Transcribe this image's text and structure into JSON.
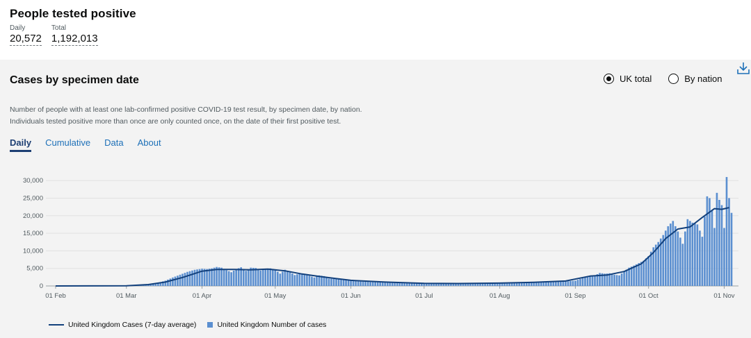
{
  "headline": {
    "title": "People tested positive",
    "daily_label": "Daily",
    "daily_value": "20,572",
    "total_label": "Total",
    "total_value": "1,192,013"
  },
  "card": {
    "title": "Cases by specimen date",
    "radio_uk": "UK total",
    "radio_nation": "By nation",
    "selected": "UK total",
    "description_line1": "Number of people with at least one lab-confirmed positive COVID-19 test result, by specimen date, by nation.",
    "description_line2": "Individuals tested positive more than once are only counted once, on the date of their first positive test.",
    "tabs": [
      "Daily",
      "Cumulative",
      "Data",
      "About"
    ],
    "active_tab": "Daily"
  },
  "colors": {
    "bar": "#5b8fd0",
    "line": "#12407c",
    "tab_active": "#1d3f73",
    "link": "#1d70b8"
  },
  "icons": {
    "download": "download-icon"
  },
  "chart_data": {
    "type": "bar",
    "x_start_date": "2020-02-01",
    "ylim": [
      0,
      32000
    ],
    "y_ticks": [
      0,
      5000,
      10000,
      15000,
      20000,
      25000,
      30000
    ],
    "y_tick_labels": [
      "0",
      "5,000",
      "10,000",
      "15,000",
      "20,000",
      "25,000",
      "30,000"
    ],
    "x_ticks": [
      {
        "date": "2020-02-01",
        "label": "01 Feb"
      },
      {
        "date": "2020-03-01",
        "label": "01 Mar"
      },
      {
        "date": "2020-04-01",
        "label": "01 Apr"
      },
      {
        "date": "2020-05-01",
        "label": "01 May"
      },
      {
        "date": "2020-06-01",
        "label": "01 Jun"
      },
      {
        "date": "2020-07-01",
        "label": "01 Jul"
      },
      {
        "date": "2020-08-01",
        "label": "01 Aug"
      },
      {
        "date": "2020-09-01",
        "label": "01 Sep"
      },
      {
        "date": "2020-10-01",
        "label": "01 Oct"
      },
      {
        "date": "2020-11-01",
        "label": "01 Nov"
      }
    ],
    "series": [
      {
        "name": "United Kingdom Number of cases",
        "kind": "bar",
        "points": [
          [
            "2020-02-01",
            2
          ],
          [
            "2020-02-15",
            5
          ],
          [
            "2020-03-01",
            40
          ],
          [
            "2020-03-05",
            100
          ],
          [
            "2020-03-08",
            250
          ],
          [
            "2020-03-11",
            500
          ],
          [
            "2020-03-14",
            900
          ],
          [
            "2020-03-17",
            1500
          ],
          [
            "2020-03-20",
            2400
          ],
          [
            "2020-03-23",
            3200
          ],
          [
            "2020-03-26",
            4000
          ],
          [
            "2020-03-29",
            4600
          ],
          [
            "2020-04-01",
            4900
          ],
          [
            "2020-04-03",
            4800
          ],
          [
            "2020-04-05",
            5000
          ],
          [
            "2020-04-07",
            5400
          ],
          [
            "2020-04-09",
            5200
          ],
          [
            "2020-04-11",
            4500
          ],
          [
            "2020-04-13",
            3900
          ],
          [
            "2020-04-15",
            4800
          ],
          [
            "2020-04-17",
            5300
          ],
          [
            "2020-04-19",
            4300
          ],
          [
            "2020-04-21",
            5200
          ],
          [
            "2020-04-23",
            5100
          ],
          [
            "2020-04-25",
            4400
          ],
          [
            "2020-04-27",
            4900
          ],
          [
            "2020-04-29",
            5000
          ],
          [
            "2020-05-01",
            4600
          ],
          [
            "2020-05-03",
            3500
          ],
          [
            "2020-05-05",
            4600
          ],
          [
            "2020-05-07",
            4000
          ],
          [
            "2020-05-09",
            3100
          ],
          [
            "2020-05-11",
            3500
          ],
          [
            "2020-05-13",
            3200
          ],
          [
            "2020-05-15",
            2900
          ],
          [
            "2020-05-17",
            2400
          ],
          [
            "2020-05-19",
            3000
          ],
          [
            "2020-05-21",
            2800
          ],
          [
            "2020-05-23",
            2100
          ],
          [
            "2020-05-25",
            2000
          ],
          [
            "2020-05-28",
            1900
          ],
          [
            "2020-06-01",
            1500
          ],
          [
            "2020-06-05",
            1300
          ],
          [
            "2020-06-10",
            1100
          ],
          [
            "2020-06-15",
            1000
          ],
          [
            "2020-06-20",
            900
          ],
          [
            "2020-06-25",
            800
          ],
          [
            "2020-07-01",
            700
          ],
          [
            "2020-07-08",
            650
          ],
          [
            "2020-07-15",
            700
          ],
          [
            "2020-07-22",
            750
          ],
          [
            "2020-07-29",
            800
          ],
          [
            "2020-08-05",
            900
          ],
          [
            "2020-08-12",
            1000
          ],
          [
            "2020-08-19",
            1100
          ],
          [
            "2020-08-26",
            1200
          ],
          [
            "2020-09-01",
            1500
          ],
          [
            "2020-09-03",
            2000
          ],
          [
            "2020-09-05",
            2500
          ],
          [
            "2020-09-07",
            2800
          ],
          [
            "2020-09-09",
            3000
          ],
          [
            "2020-09-11",
            3700
          ],
          [
            "2020-09-13",
            3500
          ],
          [
            "2020-09-15",
            3600
          ],
          [
            "2020-09-17",
            3200
          ],
          [
            "2020-09-19",
            3000
          ],
          [
            "2020-09-21",
            4100
          ],
          [
            "2020-09-23",
            5200
          ],
          [
            "2020-09-25",
            5800
          ],
          [
            "2020-09-27",
            6500
          ],
          [
            "2020-09-29",
            7200
          ],
          [
            "2020-10-01",
            8500
          ],
          [
            "2020-10-03",
            11000
          ],
          [
            "2020-10-05",
            12500
          ],
          [
            "2020-10-07",
            14500
          ],
          [
            "2020-10-09",
            17000
          ],
          [
            "2020-10-11",
            18500
          ],
          [
            "2020-10-13",
            15500
          ],
          [
            "2020-10-15",
            12000
          ],
          [
            "2020-10-17",
            19000
          ],
          [
            "2020-10-19",
            18000
          ],
          [
            "2020-10-21",
            17500
          ],
          [
            "2020-10-23",
            14000
          ],
          [
            "2020-10-25",
            25500
          ],
          [
            "2020-10-26",
            25000
          ],
          [
            "2020-10-27",
            21500
          ],
          [
            "2020-10-28",
            16500
          ],
          [
            "2020-10-29",
            26500
          ],
          [
            "2020-10-30",
            24500
          ],
          [
            "2020-10-31",
            23000
          ],
          [
            "2020-11-01",
            16500
          ],
          [
            "2020-11-02",
            31000
          ],
          [
            "2020-11-03",
            25000
          ],
          [
            "2020-11-04",
            20800
          ]
        ]
      },
      {
        "name": "United Kingdom Cases (7-day average)",
        "kind": "line",
        "points": [
          [
            "2020-02-01",
            0
          ],
          [
            "2020-03-01",
            50
          ],
          [
            "2020-03-10",
            400
          ],
          [
            "2020-03-17",
            1100
          ],
          [
            "2020-03-24",
            2400
          ],
          [
            "2020-04-01",
            4200
          ],
          [
            "2020-04-07",
            4700
          ],
          [
            "2020-04-14",
            4700
          ],
          [
            "2020-04-21",
            4600
          ],
          [
            "2020-04-28",
            4800
          ],
          [
            "2020-05-05",
            4300
          ],
          [
            "2020-05-12",
            3400
          ],
          [
            "2020-05-19",
            2700
          ],
          [
            "2020-05-26",
            2100
          ],
          [
            "2020-06-01",
            1600
          ],
          [
            "2020-06-15",
            1100
          ],
          [
            "2020-07-01",
            750
          ],
          [
            "2020-07-15",
            700
          ],
          [
            "2020-08-01",
            800
          ],
          [
            "2020-08-15",
            1050
          ],
          [
            "2020-08-28",
            1400
          ],
          [
            "2020-09-07",
            2800
          ],
          [
            "2020-09-14",
            3100
          ],
          [
            "2020-09-21",
            4100
          ],
          [
            "2020-09-28",
            6300
          ],
          [
            "2020-10-03",
            9500
          ],
          [
            "2020-10-08",
            13500
          ],
          [
            "2020-10-13",
            16200
          ],
          [
            "2020-10-18",
            16800
          ],
          [
            "2020-10-23",
            19500
          ],
          [
            "2020-10-28",
            22000
          ],
          [
            "2020-10-31",
            21800
          ],
          [
            "2020-11-03",
            22300
          ]
        ]
      }
    ],
    "legend": [
      "United Kingdom Cases (7-day average)",
      "United Kingdom Number of cases"
    ],
    "legend_position": "bottom-left",
    "grid": true
  }
}
